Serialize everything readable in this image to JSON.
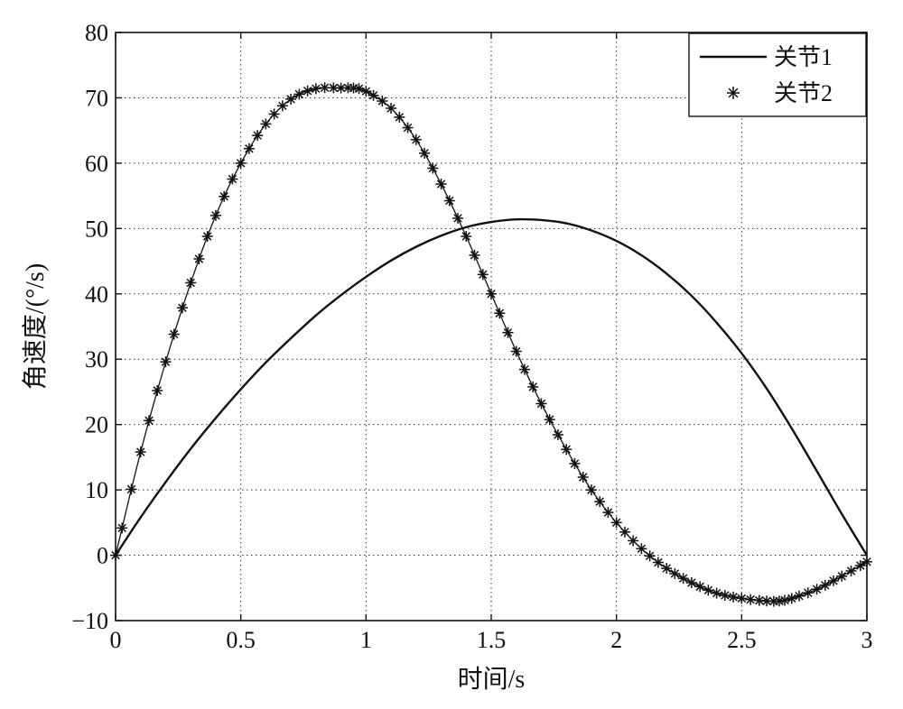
{
  "chart_data": {
    "type": "line",
    "title": "",
    "xlabel": "时间/s",
    "ylabel": "角速度/(°/s)",
    "xlim": [
      0,
      3
    ],
    "ylim": [
      -10,
      80
    ],
    "xticks": [
      0,
      0.5,
      1,
      1.5,
      2,
      2.5,
      3
    ],
    "xtick_labels": [
      "0",
      "0.5",
      "1",
      "1.5",
      "2",
      "2.5",
      "3"
    ],
    "yticks": [
      -10,
      0,
      10,
      20,
      30,
      40,
      50,
      60,
      70,
      80
    ],
    "ytick_labels": [
      "−10",
      "0",
      "10",
      "20",
      "30",
      "40",
      "50",
      "60",
      "70",
      "80"
    ],
    "grid": true,
    "legend_position": "top-right",
    "series": [
      {
        "name": "关节1",
        "style": "solid-line",
        "color": "#111111",
        "x": [
          0,
          0.1,
          0.2,
          0.3,
          0.4,
          0.5,
          0.6,
          0.7,
          0.8,
          0.9,
          1.0,
          1.1,
          1.2,
          1.3,
          1.4,
          1.5,
          1.6,
          1.7,
          1.8,
          1.9,
          2.0,
          2.1,
          2.2,
          2.3,
          2.4,
          2.5,
          2.6,
          2.7,
          2.8,
          2.9,
          3.0
        ],
        "y": [
          0,
          5.8,
          11.2,
          16.3,
          21.0,
          25.4,
          29.5,
          33.2,
          36.7,
          39.8,
          42.6,
          45.1,
          47.2,
          48.9,
          50.2,
          51.0,
          51.4,
          51.3,
          50.8,
          49.7,
          48.1,
          45.9,
          43.1,
          39.7,
          35.6,
          30.9,
          25.5,
          19.4,
          12.9,
          6.3,
          0
        ]
      },
      {
        "name": "关节2",
        "style": "asterisk-markers",
        "color": "#111111",
        "x": [
          0,
          0.1,
          0.2,
          0.3,
          0.4,
          0.5,
          0.6,
          0.7,
          0.8,
          0.9,
          0.95,
          1.0,
          1.1,
          1.2,
          1.3,
          1.4,
          1.5,
          1.6,
          1.7,
          1.8,
          1.9,
          2.0,
          2.1,
          2.2,
          2.3,
          2.4,
          2.5,
          2.6,
          2.65,
          2.7,
          2.8,
          2.9,
          3.0
        ],
        "y": [
          0,
          15.8,
          29.6,
          41.7,
          52.0,
          60.0,
          66.0,
          69.8,
          71.4,
          71.5,
          71.5,
          71.0,
          68.4,
          63.6,
          56.8,
          48.8,
          40.0,
          31.2,
          23.2,
          16.2,
          10.0,
          5.0,
          1.0,
          -2.0,
          -4.2,
          -5.8,
          -6.6,
          -7.0,
          -7.0,
          -6.6,
          -5.2,
          -3.2,
          -1.0
        ]
      }
    ]
  }
}
